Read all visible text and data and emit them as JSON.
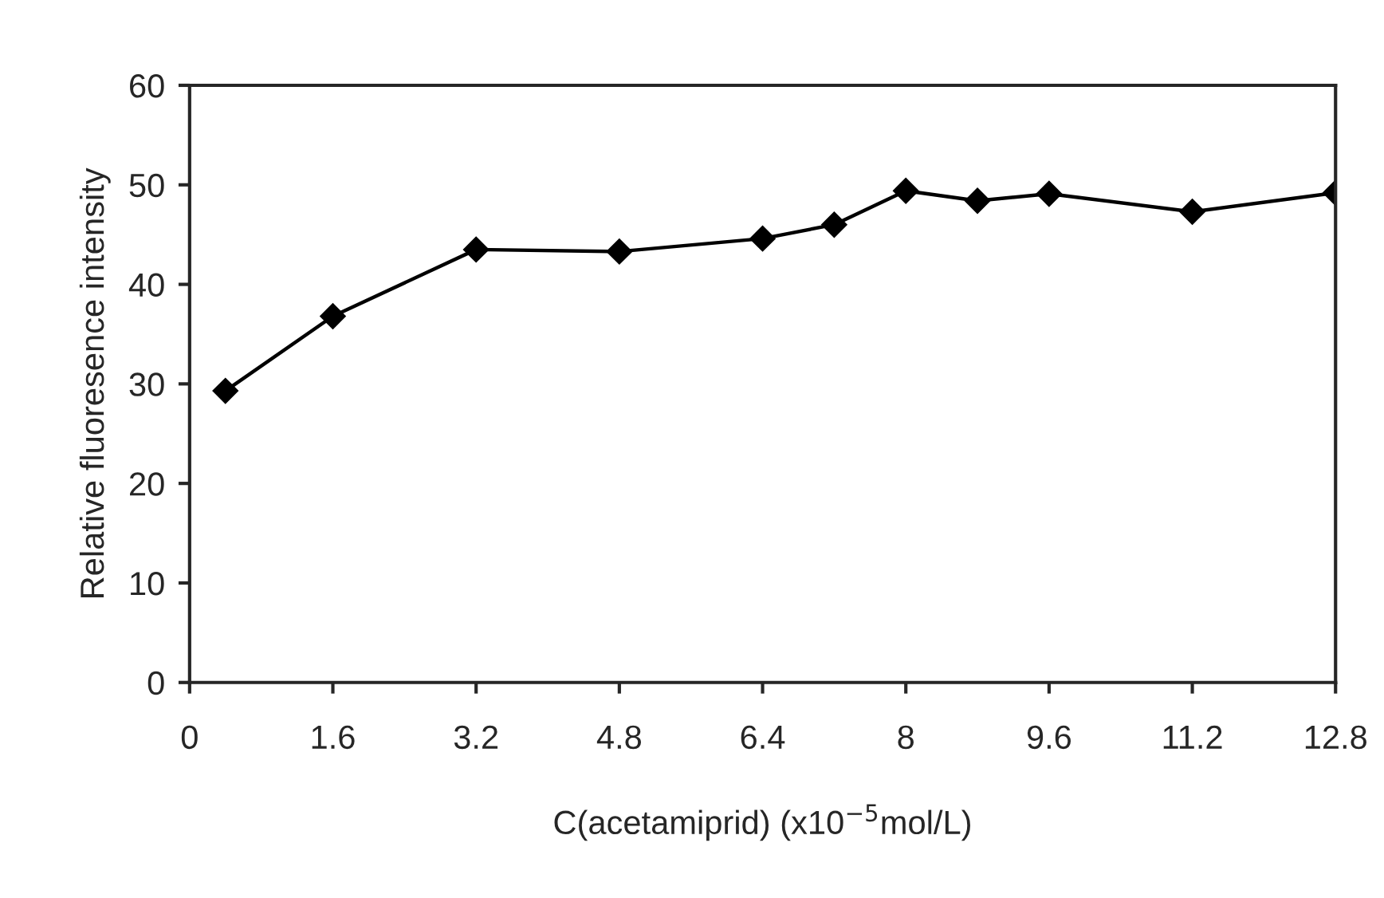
{
  "chart_data": {
    "type": "line",
    "xlabel": "C(acetamiprid) (x10$^{−5}$mol/L)",
    "ylabel": "Relative fluoresence intensity",
    "x": [
      0.4,
      1.6,
      3.2,
      4.8,
      6.4,
      7.2,
      8,
      8.8,
      9.6,
      11.2,
      12.8
    ],
    "series": [
      {
        "color": "#000000",
        "values": [
          29.3,
          36.8,
          43.5,
          43.3,
          44.6,
          46.0,
          49.4,
          48.4,
          49.1,
          47.3,
          49.2
        ]
      }
    ],
    "xlim": [
      0,
      12.8
    ],
    "xticks": [
      0,
      1.6,
      3.2,
      4.8,
      6.4,
      8,
      9.6,
      11.2,
      12.8
    ],
    "ylim": [
      0,
      60
    ],
    "yticks": [
      0,
      10,
      20,
      30,
      40,
      50,
      60
    ],
    "marker": "diamond",
    "line_style": "solid",
    "grid": false,
    "legend": false
  }
}
